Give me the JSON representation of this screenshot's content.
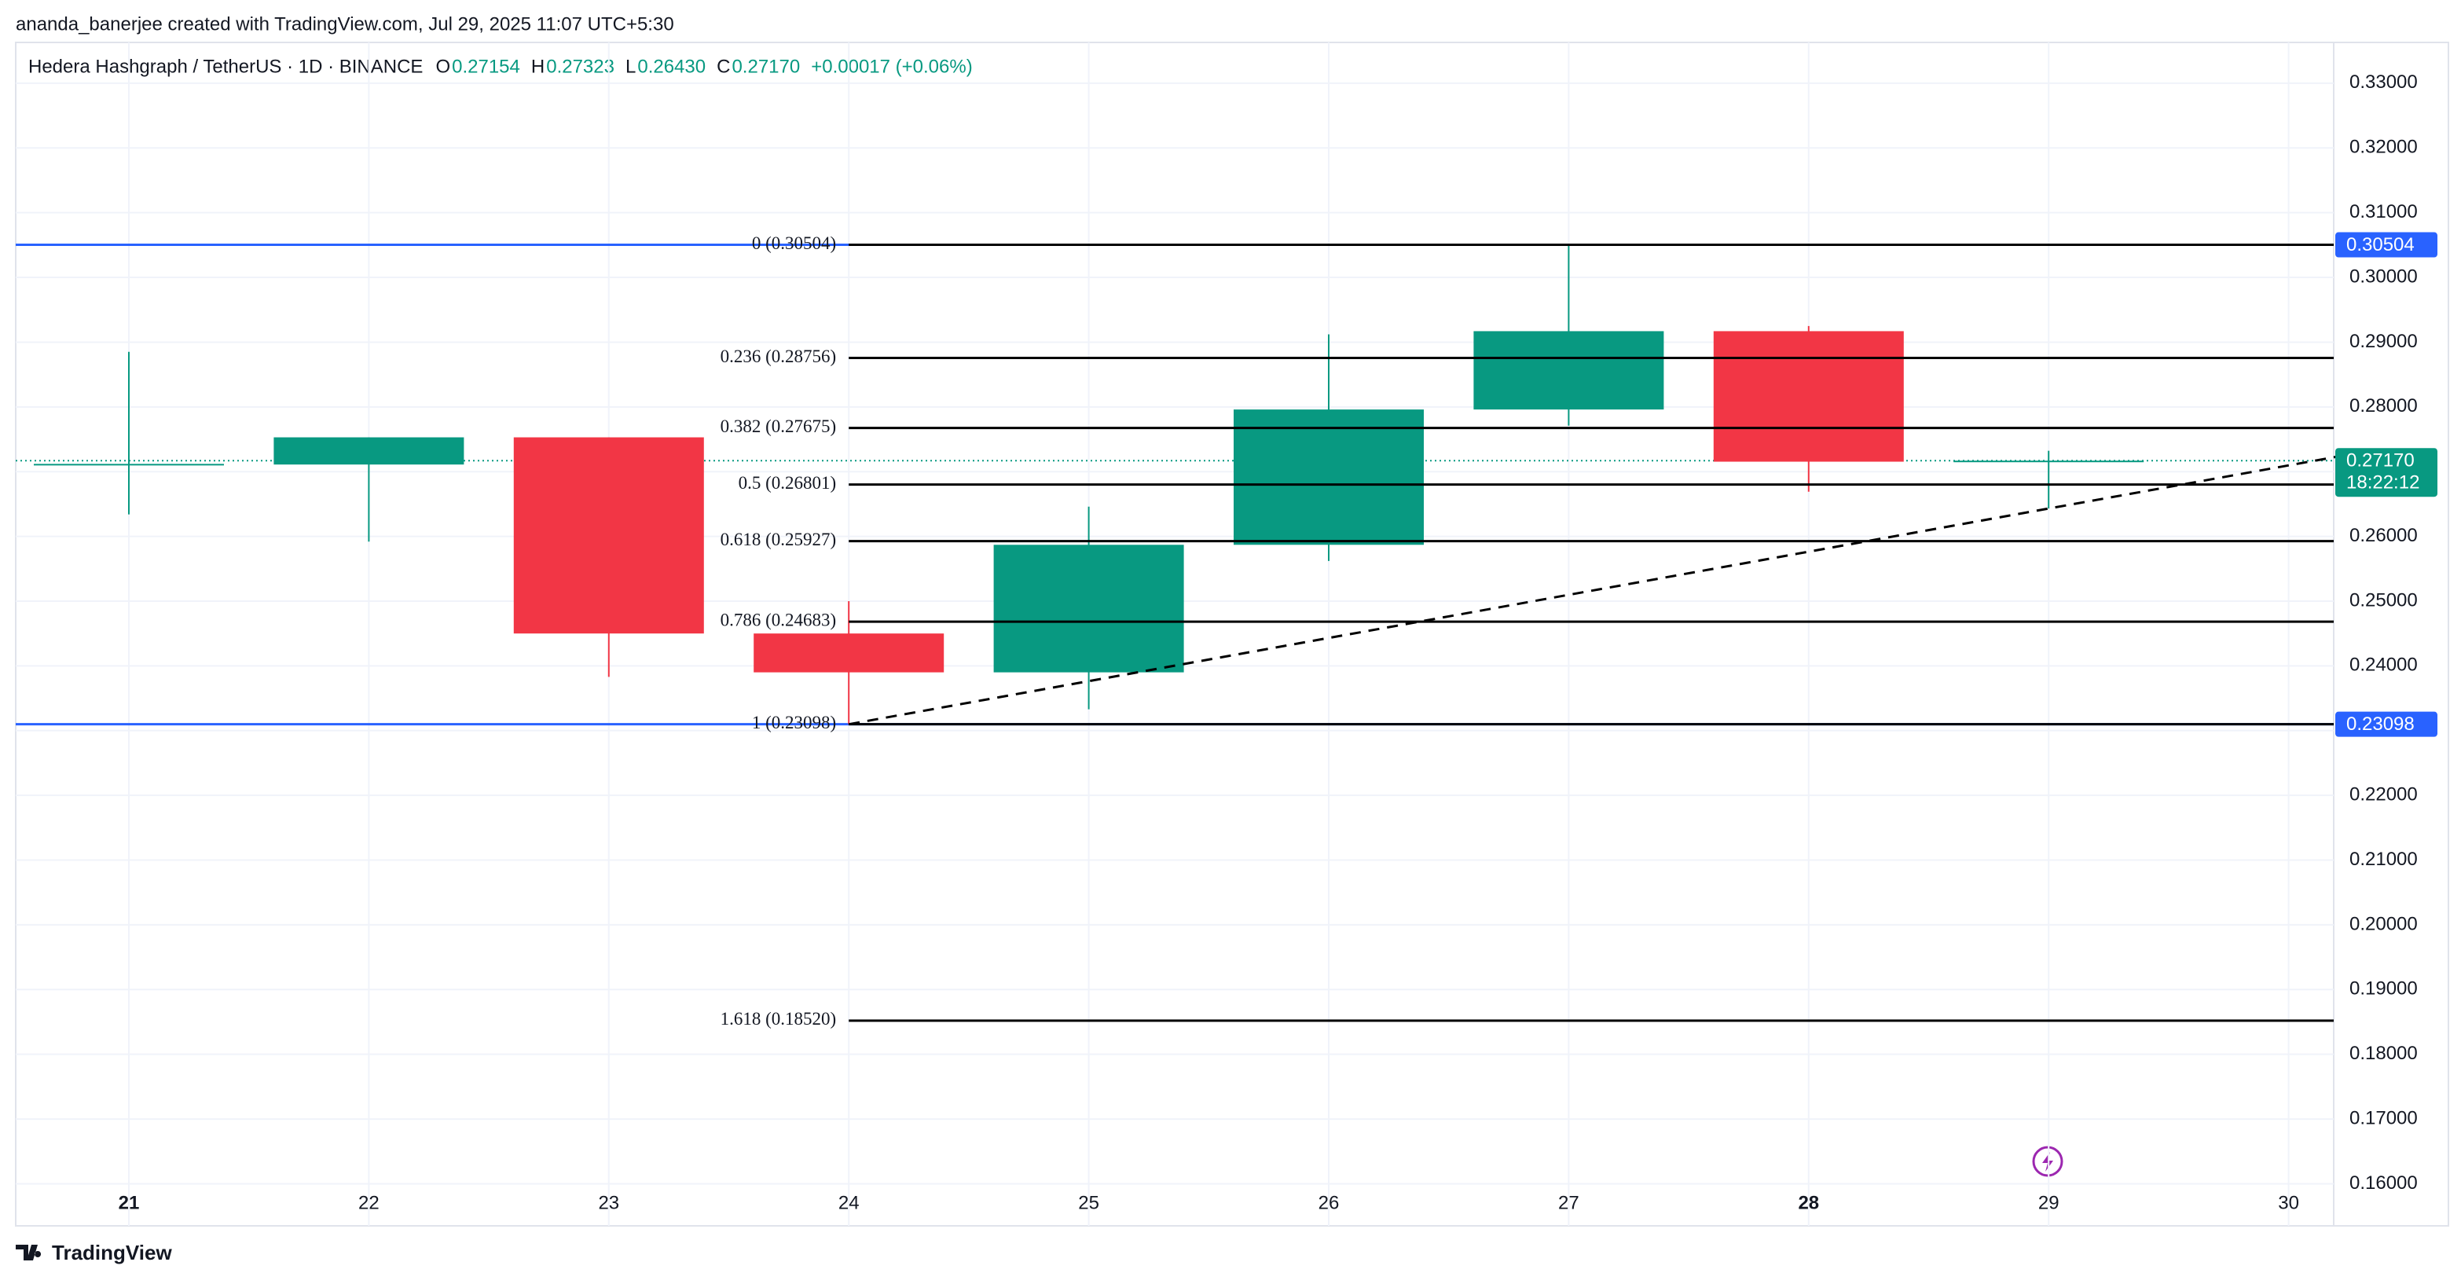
{
  "header": {
    "title": "ananda_banerjee created with TradingView.com, Jul 29, 2025 11:07 UTC+5:30"
  },
  "footer": {
    "brand": "TradingView"
  },
  "chart_data": {
    "type": "candlestick",
    "legend": {
      "symbol": "Hedera Hashgraph / TetherUS · 1D · BINANCE",
      "items": [
        {
          "key": "O",
          "label": "0.27154"
        },
        {
          "key": "H",
          "label": "0.27323"
        },
        {
          "key": "L",
          "label": "0.26430"
        },
        {
          "key": "C",
          "label": "0.27170"
        }
      ],
      "change": "+0.00017 (+0.06%)"
    },
    "categories": [
      "21",
      "22",
      "23",
      "24",
      "25",
      "26",
      "27",
      "28",
      "29",
      "30"
    ],
    "bold_categories": [
      0,
      7
    ],
    "open": [
      0.271,
      0.2711,
      0.2753,
      0.245,
      0.239,
      0.2587,
      0.2796,
      0.2917,
      0.27154,
      null
    ],
    "high": [
      0.2885,
      0.2753,
      0.2753,
      0.25,
      0.2646,
      0.2912,
      0.30504,
      0.2925,
      0.27323,
      null
    ],
    "low": [
      0.2634,
      0.2592,
      0.2383,
      0.23098,
      0.2333,
      0.2562,
      0.2771,
      0.2669,
      0.2643,
      null
    ],
    "close": [
      0.2712,
      0.2753,
      0.245,
      0.239,
      0.2587,
      0.2796,
      0.2917,
      0.27154,
      0.2717,
      null
    ],
    "up_color": "#089981",
    "down_color": "#f23645",
    "ylim": [
      0.1535,
      0.3363
    ],
    "yticks": [
      {
        "value": 0.16,
        "label": "0.16000"
      },
      {
        "value": 0.17,
        "label": "0.17000"
      },
      {
        "value": 0.18,
        "label": "0.18000"
      },
      {
        "value": 0.19,
        "label": "0.19000"
      },
      {
        "value": 0.2,
        "label": "0.20000"
      },
      {
        "value": 0.21,
        "label": "0.21000"
      },
      {
        "value": 0.22,
        "label": "0.22000"
      },
      {
        "value": 0.23,
        "label": "0.23000"
      },
      {
        "value": 0.24,
        "label": "0.24000"
      },
      {
        "value": 0.25,
        "label": "0.25000"
      },
      {
        "value": 0.26,
        "label": "0.26000"
      },
      {
        "value": 0.27,
        "label": "0.27000"
      },
      {
        "value": 0.28,
        "label": "0.28000"
      },
      {
        "value": 0.29,
        "label": "0.29000"
      },
      {
        "value": 0.3,
        "label": "0.30000"
      },
      {
        "value": 0.31,
        "label": "0.31000"
      },
      {
        "value": 0.32,
        "label": "0.32000"
      },
      {
        "value": 0.33,
        "label": "0.33000"
      }
    ],
    "grid": true,
    "fib_levels": [
      {
        "value": 0.30504,
        "label": "0 (0.30504)"
      },
      {
        "value": 0.28756,
        "label": "0.236 (0.28756)"
      },
      {
        "value": 0.27675,
        "label": "0.382 (0.27675)"
      },
      {
        "value": 0.26801,
        "label": "0.5 (0.26801)"
      },
      {
        "value": 0.25927,
        "label": "0.618 (0.25927)"
      },
      {
        "value": 0.24683,
        "label": "0.786 (0.24683)"
      },
      {
        "value": 0.23098,
        "label": "1 (0.23098)"
      },
      {
        "value": 0.1852,
        "label": "1.618 (0.18520)"
      }
    ],
    "fib_start": 3,
    "horizontal_lines": [
      {
        "value": 0.30504,
        "label": "0.30504",
        "color": "#2962ff"
      },
      {
        "value": 0.23098,
        "label": "0.23098",
        "color": "#2962ff"
      }
    ],
    "last_price": {
      "value": 0.2717,
      "label": "0.27170",
      "countdown": "18:22:12",
      "color": "#089981"
    },
    "trendline": {
      "x": [
        3,
        9.2
      ],
      "y": [
        0.23098,
        0.2723
      ]
    }
  }
}
